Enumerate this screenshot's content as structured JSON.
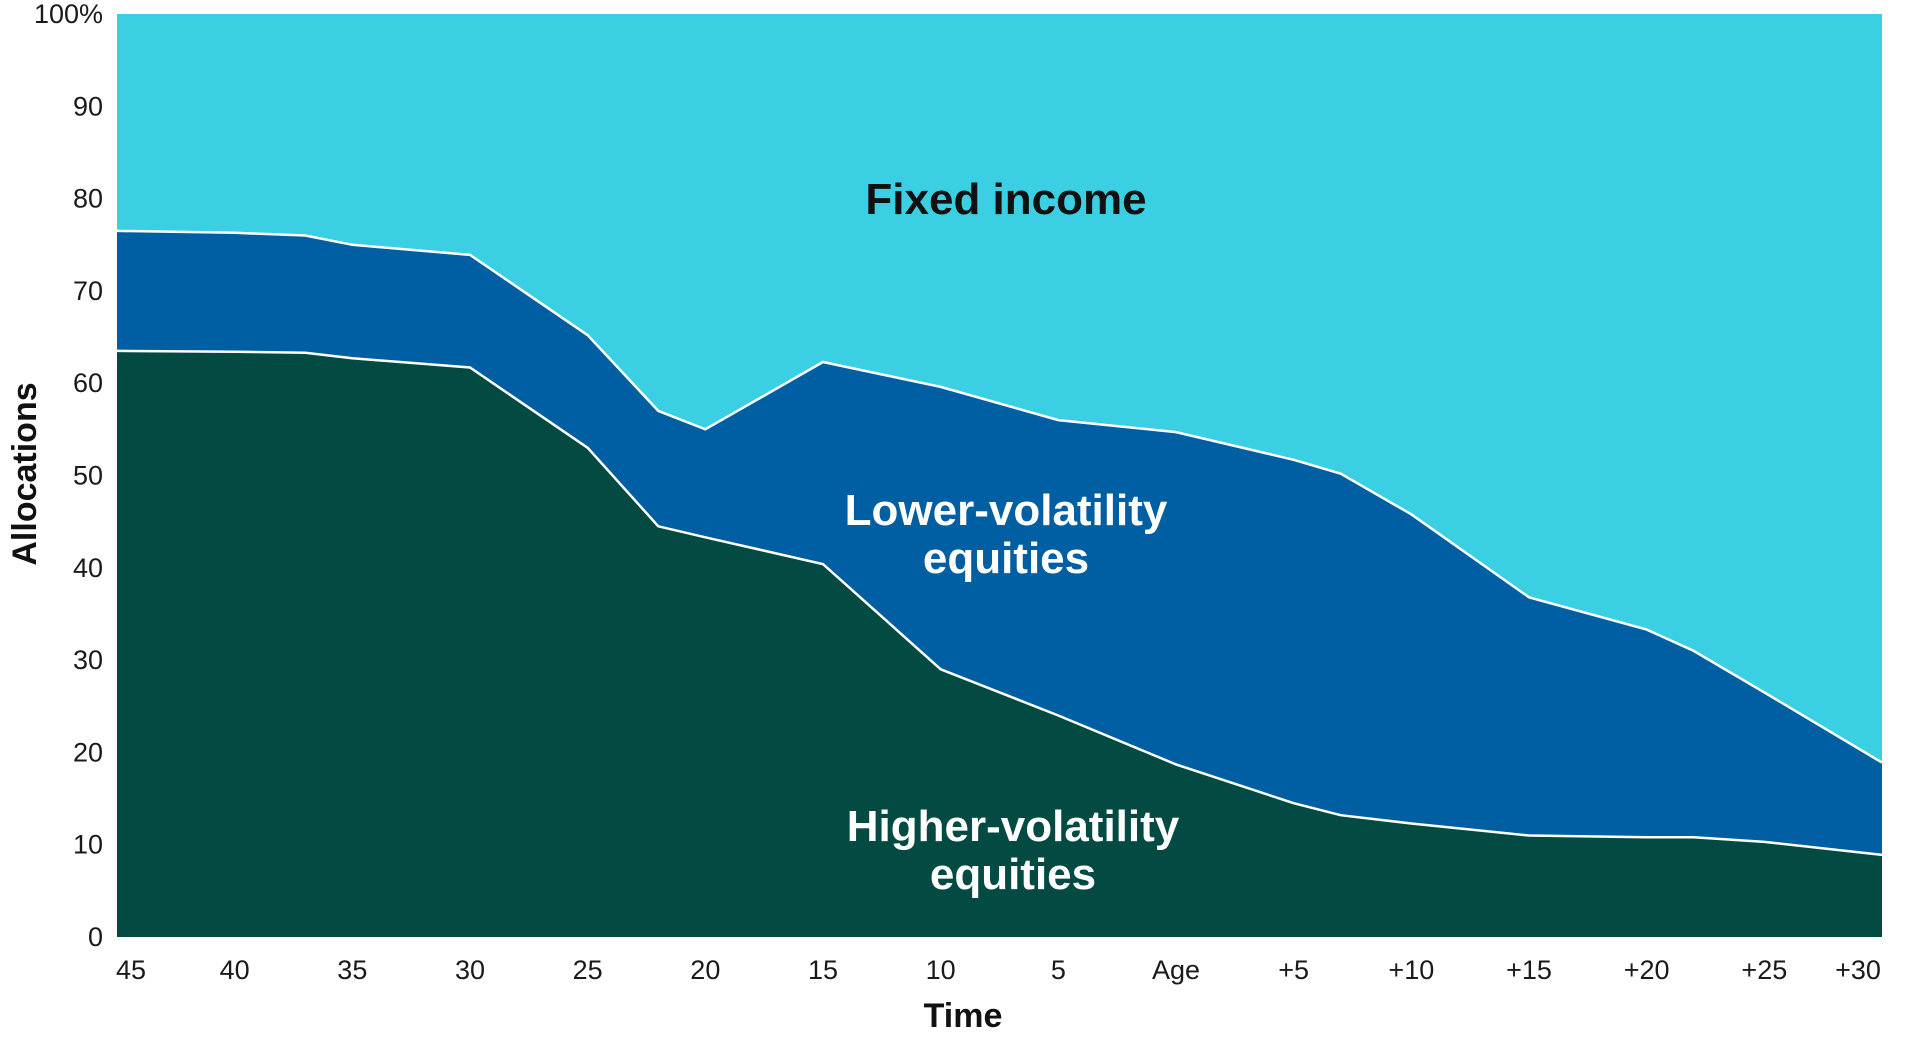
{
  "chart_data": {
    "type": "area",
    "stacked": true,
    "x": [
      "45",
      "40",
      "37",
      "35",
      "30",
      "25",
      "22",
      "20",
      "15",
      "10",
      "5",
      "Age",
      "+5",
      "+7",
      "+10",
      "+15",
      "+20",
      "+22",
      "+25",
      "+30"
    ],
    "x_numeric": [
      -45,
      -40,
      -37,
      -35,
      -30,
      -25,
      -22,
      -20,
      -15,
      -10,
      -5,
      0,
      5,
      7,
      10,
      15,
      20,
      22,
      25,
      30
    ],
    "x_ticks": [
      "45",
      "40",
      "35",
      "30",
      "25",
      "20",
      "15",
      "10",
      "5",
      "Age",
      "+5",
      "+10",
      "+15",
      "+20",
      "+25",
      "+30"
    ],
    "x_tick_values": [
      -45,
      -40,
      -35,
      -30,
      -25,
      -20,
      -15,
      -10,
      -5,
      0,
      5,
      10,
      15,
      20,
      25,
      30
    ],
    "y_ticks": [
      "0",
      "10",
      "20",
      "30",
      "40",
      "50",
      "60",
      "70",
      "80",
      "90",
      "100%"
    ],
    "y_tick_values": [
      0,
      10,
      20,
      30,
      40,
      50,
      60,
      70,
      80,
      90,
      100
    ],
    "ylim": [
      0,
      100
    ],
    "xlim": [
      -45,
      30
    ],
    "xlabel": "Time",
    "ylabel": "Allocations",
    "grid": false,
    "legend": "none (labels placed inside areas)",
    "series": [
      {
        "name": "Higher-volatility equities",
        "label_lines": [
          "Higher-volatility",
          "equities"
        ],
        "color": "#034a42",
        "label_color": "#ffffff",
        "values": [
          63.5,
          63.4,
          63.3,
          62.7,
          61.7,
          53,
          44.5,
          43.3,
          40.4,
          29,
          24,
          18.7,
          14.5,
          13.2,
          12.3,
          11,
          10.8,
          10.8,
          10.3,
          8.9
        ]
      },
      {
        "name": "Lower-volatility equities",
        "label_lines": [
          "Lower-volatility",
          "equities"
        ],
        "color": "#005ea2",
        "label_color": "#ffffff",
        "values": [
          13,
          12.9,
          12.7,
          12.3,
          12.2,
          12.2,
          12.5,
          11.7,
          21.9,
          30.6,
          32,
          36,
          37.2,
          37,
          33.5,
          25.8,
          22.5,
          20.2,
          16.2,
          10
        ]
      },
      {
        "name": "Fixed income",
        "label_lines": [
          "Fixed income"
        ],
        "color": "#3acfe3",
        "label_color": "#111111",
        "values": [
          23.5,
          23.7,
          24,
          25,
          26.1,
          34.8,
          43,
          45,
          37.7,
          40.4,
          44,
          45.3,
          48.3,
          49.8,
          54.2,
          63.2,
          66.7,
          69,
          73.5,
          81.1
        ]
      }
    ]
  }
}
